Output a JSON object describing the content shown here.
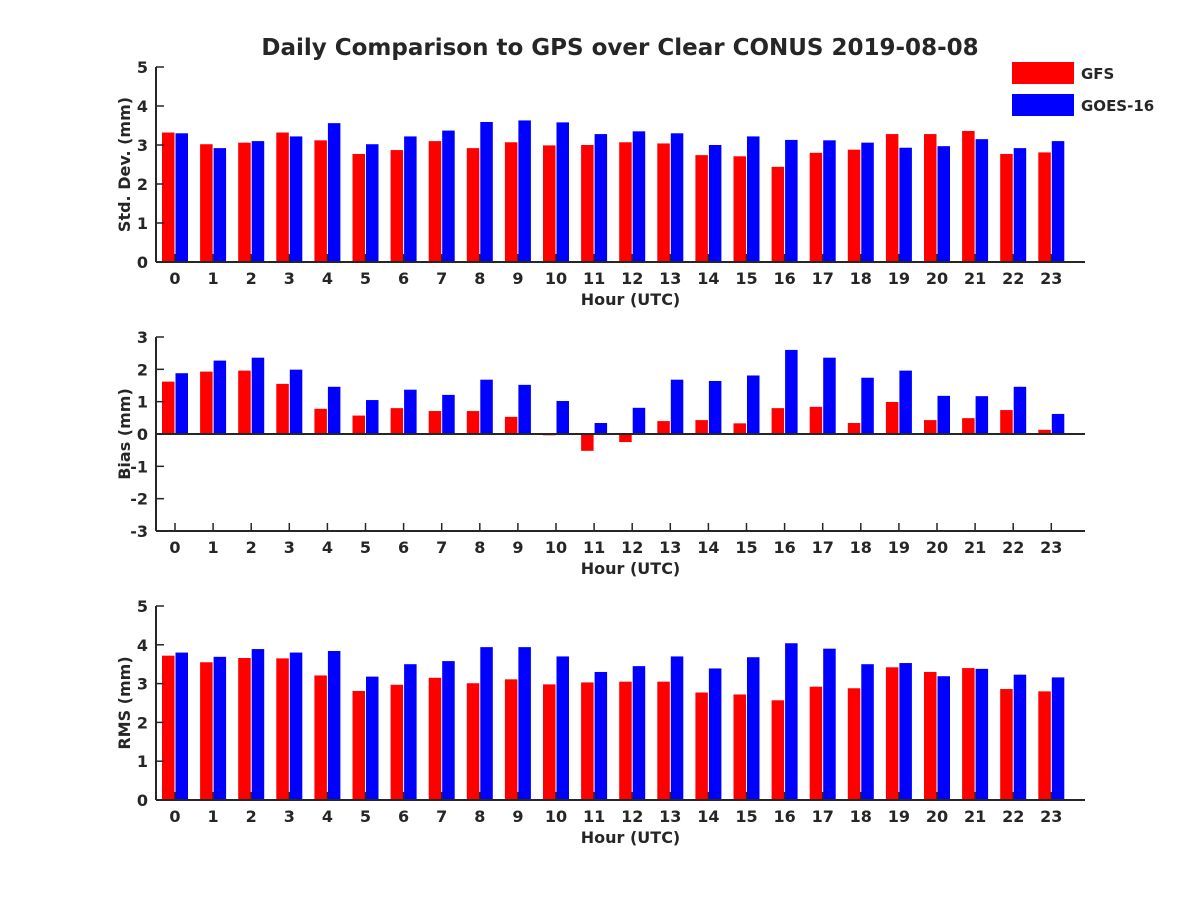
{
  "title": "Daily Comparison to GPS over Clear CONUS 2019-08-08",
  "legend": {
    "placement": "top-right",
    "entries": [
      {
        "name": "GFS",
        "color": "#ff0000"
      },
      {
        "name": "GOES-16",
        "color": "#0000ff"
      }
    ]
  },
  "chart_data": [
    {
      "id": "std",
      "type": "bar",
      "title": "Daily Comparison to GPS over Clear CONUS 2019-08-08",
      "xlabel": "Hour (UTC)",
      "ylabel": "Std. Dev. (mm)",
      "ylim": [
        0,
        5
      ],
      "yticks": [
        0,
        1,
        2,
        3,
        4,
        5
      ],
      "grid": false,
      "categories": [
        "0",
        "1",
        "2",
        "3",
        "4",
        "5",
        "6",
        "7",
        "8",
        "9",
        "10",
        "11",
        "12",
        "13",
        "14",
        "15",
        "16",
        "17",
        "18",
        "19",
        "20",
        "21",
        "22",
        "23"
      ],
      "series": [
        {
          "name": "GFS",
          "color": "#ff0000",
          "values": [
            3.32,
            3.02,
            3.06,
            3.32,
            3.12,
            2.77,
            2.87,
            3.1,
            2.92,
            3.07,
            2.99,
            3.0,
            3.07,
            3.04,
            2.74,
            2.71,
            2.44,
            2.8,
            2.88,
            3.28,
            3.28,
            3.36,
            2.77,
            2.81
          ]
        },
        {
          "name": "GOES-16",
          "color": "#0000ff",
          "values": [
            3.3,
            2.92,
            3.1,
            3.22,
            3.56,
            3.02,
            3.22,
            3.37,
            3.59,
            3.63,
            3.58,
            3.28,
            3.35,
            3.3,
            3.0,
            3.22,
            3.13,
            3.12,
            3.06,
            2.93,
            2.97,
            3.15,
            2.92,
            3.1
          ]
        }
      ]
    },
    {
      "id": "bias",
      "type": "bar",
      "xlabel": "Hour (UTC)",
      "ylabel": "Bias (mm)",
      "ylim": [
        -3,
        3
      ],
      "yticks": [
        -3,
        -2,
        -1,
        0,
        1,
        2,
        3
      ],
      "grid": false,
      "categories": [
        "0",
        "1",
        "2",
        "3",
        "4",
        "5",
        "6",
        "7",
        "8",
        "9",
        "10",
        "11",
        "12",
        "13",
        "14",
        "15",
        "16",
        "17",
        "18",
        "19",
        "20",
        "21",
        "22",
        "23"
      ],
      "series": [
        {
          "name": "GFS",
          "color": "#ff0000",
          "values": [
            1.62,
            1.93,
            1.96,
            1.55,
            0.78,
            0.57,
            0.8,
            0.71,
            0.71,
            0.53,
            -0.04,
            -0.52,
            -0.25,
            0.4,
            0.43,
            0.33,
            0.8,
            0.84,
            0.34,
            0.99,
            0.43,
            0.49,
            0.74,
            0.13
          ]
        },
        {
          "name": "GOES-16",
          "color": "#0000ff",
          "values": [
            1.88,
            2.27,
            2.36,
            1.99,
            1.46,
            1.05,
            1.37,
            1.21,
            1.68,
            1.52,
            1.02,
            0.34,
            0.81,
            1.68,
            1.64,
            1.81,
            2.6,
            2.36,
            1.74,
            1.96,
            1.18,
            1.17,
            1.46,
            0.62
          ]
        }
      ]
    },
    {
      "id": "rms",
      "type": "bar",
      "xlabel": "Hour (UTC)",
      "ylabel": "RMS (mm)",
      "ylim": [
        0,
        5
      ],
      "yticks": [
        0,
        1,
        2,
        3,
        4,
        5
      ],
      "grid": false,
      "categories": [
        "0",
        "1",
        "2",
        "3",
        "4",
        "5",
        "6",
        "7",
        "8",
        "9",
        "10",
        "11",
        "12",
        "13",
        "14",
        "15",
        "16",
        "17",
        "18",
        "19",
        "20",
        "21",
        "22",
        "23"
      ],
      "series": [
        {
          "name": "GFS",
          "color": "#ff0000",
          "values": [
            3.72,
            3.55,
            3.66,
            3.65,
            3.21,
            2.81,
            2.97,
            3.15,
            3.01,
            3.11,
            2.98,
            3.03,
            3.05,
            3.05,
            2.77,
            2.72,
            2.57,
            2.92,
            2.88,
            3.42,
            3.3,
            3.4,
            2.86,
            2.8
          ]
        },
        {
          "name": "GOES-16",
          "color": "#0000ff",
          "values": [
            3.8,
            3.69,
            3.89,
            3.8,
            3.84,
            3.18,
            3.5,
            3.58,
            3.94,
            3.94,
            3.7,
            3.3,
            3.45,
            3.7,
            3.39,
            3.68,
            4.04,
            3.9,
            3.5,
            3.53,
            3.19,
            3.38,
            3.23,
            3.16
          ]
        }
      ]
    }
  ]
}
